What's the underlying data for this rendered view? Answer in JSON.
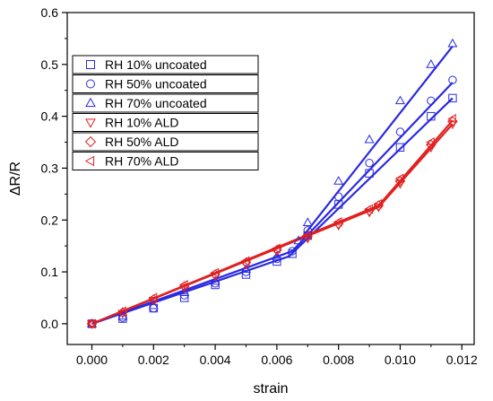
{
  "chart_data": {
    "type": "scatter",
    "xlabel": "strain",
    "ylabel": "ΔR/R",
    "xlim": [
      -0.0008,
      0.0124
    ],
    "ylim": [
      -0.04,
      0.6
    ],
    "xticks": [
      "0.000",
      "0.002",
      "0.004",
      "0.006",
      "0.008",
      "0.010",
      "0.012"
    ],
    "yticks": [
      "0.0",
      "0.1",
      "0.2",
      "0.3",
      "0.4",
      "0.5",
      "0.6"
    ],
    "grid": false,
    "legend_position": "top-left",
    "colors": {
      "uncoated": "#2a2ae0",
      "ald": "#e02020"
    },
    "series": [
      {
        "name": "RH 10% uncoated",
        "color": "#2a2ae0",
        "marker": "square",
        "x": [
          0.0,
          0.001,
          0.002,
          0.003,
          0.004,
          0.005,
          0.006,
          0.0065,
          0.007,
          0.008,
          0.009,
          0.01,
          0.011,
          0.0117
        ],
        "y": [
          0.0,
          0.01,
          0.03,
          0.05,
          0.075,
          0.095,
          0.12,
          0.135,
          0.17,
          0.23,
          0.29,
          0.34,
          0.4,
          0.435
        ]
      },
      {
        "name": "RH 50% uncoated",
        "color": "#2a2ae0",
        "marker": "circle",
        "x": [
          0.0,
          0.001,
          0.002,
          0.003,
          0.004,
          0.005,
          0.006,
          0.0065,
          0.007,
          0.008,
          0.009,
          0.01,
          0.011,
          0.0117
        ],
        "y": [
          0.0,
          0.012,
          0.03,
          0.055,
          0.078,
          0.1,
          0.125,
          0.14,
          0.18,
          0.245,
          0.31,
          0.37,
          0.43,
          0.47
        ]
      },
      {
        "name": "RH 70% uncoated",
        "color": "#2a2ae0",
        "marker": "triangle-up",
        "x": [
          0.0,
          0.001,
          0.002,
          0.003,
          0.004,
          0.005,
          0.006,
          0.0067,
          0.007,
          0.008,
          0.009,
          0.01,
          0.011,
          0.0117
        ],
        "y": [
          0.0,
          0.015,
          0.035,
          0.06,
          0.082,
          0.105,
          0.13,
          0.16,
          0.195,
          0.275,
          0.355,
          0.43,
          0.5,
          0.54
        ]
      },
      {
        "name": "RH 10% ALD",
        "color": "#e02020",
        "marker": "triangle-down",
        "x": [
          0.0,
          0.001,
          0.002,
          0.003,
          0.004,
          0.005,
          0.006,
          0.007,
          0.008,
          0.009,
          0.0093,
          0.01,
          0.011,
          0.0117
        ],
        "y": [
          0.0,
          0.02,
          0.045,
          0.07,
          0.092,
          0.115,
          0.14,
          0.165,
          0.19,
          0.215,
          0.225,
          0.27,
          0.34,
          0.385
        ]
      },
      {
        "name": "RH 50% ALD",
        "color": "#e02020",
        "marker": "diamond",
        "x": [
          0.0,
          0.001,
          0.002,
          0.003,
          0.004,
          0.005,
          0.006,
          0.007,
          0.008,
          0.009,
          0.0093,
          0.01,
          0.011,
          0.0117
        ],
        "y": [
          0.0,
          0.022,
          0.047,
          0.072,
          0.095,
          0.118,
          0.142,
          0.168,
          0.193,
          0.218,
          0.228,
          0.275,
          0.345,
          0.39
        ]
      },
      {
        "name": "RH 70% ALD",
        "color": "#e02020",
        "marker": "triangle-left",
        "x": [
          0.0,
          0.001,
          0.002,
          0.003,
          0.004,
          0.005,
          0.006,
          0.007,
          0.008,
          0.009,
          0.0093,
          0.01,
          0.011,
          0.0117
        ],
        "y": [
          0.0,
          0.024,
          0.05,
          0.075,
          0.098,
          0.121,
          0.145,
          0.171,
          0.196,
          0.221,
          0.231,
          0.28,
          0.35,
          0.395
        ]
      }
    ],
    "fit_lines": [
      {
        "color": "#2a2ae0",
        "x": [
          0.0,
          0.0064,
          0.0117
        ],
        "y": [
          0.0,
          0.13,
          0.435
        ]
      },
      {
        "color": "#2a2ae0",
        "x": [
          0.0,
          0.0065,
          0.0117
        ],
        "y": [
          0.0,
          0.14,
          0.465
        ]
      },
      {
        "color": "#2a2ae0",
        "x": [
          0.0,
          0.0068,
          0.0117
        ],
        "y": [
          0.0,
          0.165,
          0.535
        ]
      },
      {
        "color": "#e02020",
        "x": [
          0.0,
          0.0093,
          0.0117
        ],
        "y": [
          0.0,
          0.225,
          0.385
        ]
      },
      {
        "color": "#e02020",
        "x": [
          0.0,
          0.0093,
          0.0117
        ],
        "y": [
          0.0,
          0.228,
          0.392
        ]
      }
    ]
  }
}
